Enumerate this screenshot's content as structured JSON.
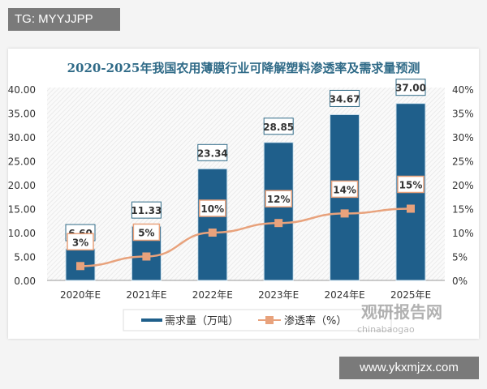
{
  "overlay": {
    "top_left_tag": "TG: MYYJJPP",
    "bottom_right_site": "www.ykxmjzx.com"
  },
  "watermark": {
    "brand": "观研报告网",
    "sub": "chinabaogao"
  },
  "chart_data": {
    "type": "bar+line",
    "title": "2020-2025年我国农用薄膜行业可降解塑料渗透率及需求量预测",
    "categories": [
      "2020年E",
      "2021年E",
      "2022年E",
      "2023年E",
      "2024年E",
      "2025年E"
    ],
    "series": [
      {
        "name": "需求量（万吨）",
        "type": "bar",
        "axis": "left",
        "values": [
          6.6,
          11.33,
          23.34,
          28.85,
          34.67,
          37.0
        ],
        "labels": [
          "6.60",
          "11.33",
          "23.34",
          "28.85",
          "34.67",
          "37.00"
        ],
        "color": "#1f5f8b"
      },
      {
        "name": "渗透率（%）",
        "type": "line",
        "axis": "right",
        "values": [
          3,
          5,
          10,
          12,
          14,
          15
        ],
        "labels": [
          "3%",
          "5%",
          "10%",
          "12%",
          "14%",
          "15%"
        ],
        "color": "#e8a27c"
      }
    ],
    "left_axis": {
      "ylim": [
        0,
        40
      ],
      "ticks": [
        "0.00",
        "5.00",
        "10.00",
        "15.00",
        "20.00",
        "25.00",
        "30.00",
        "35.00",
        "40.00"
      ]
    },
    "right_axis": {
      "ylim": [
        0,
        40
      ],
      "ticks": [
        "0%",
        "5%",
        "10%",
        "15%",
        "20%",
        "25%",
        "30%",
        "35%",
        "40%"
      ]
    },
    "grid": false,
    "legend_position": "bottom"
  }
}
